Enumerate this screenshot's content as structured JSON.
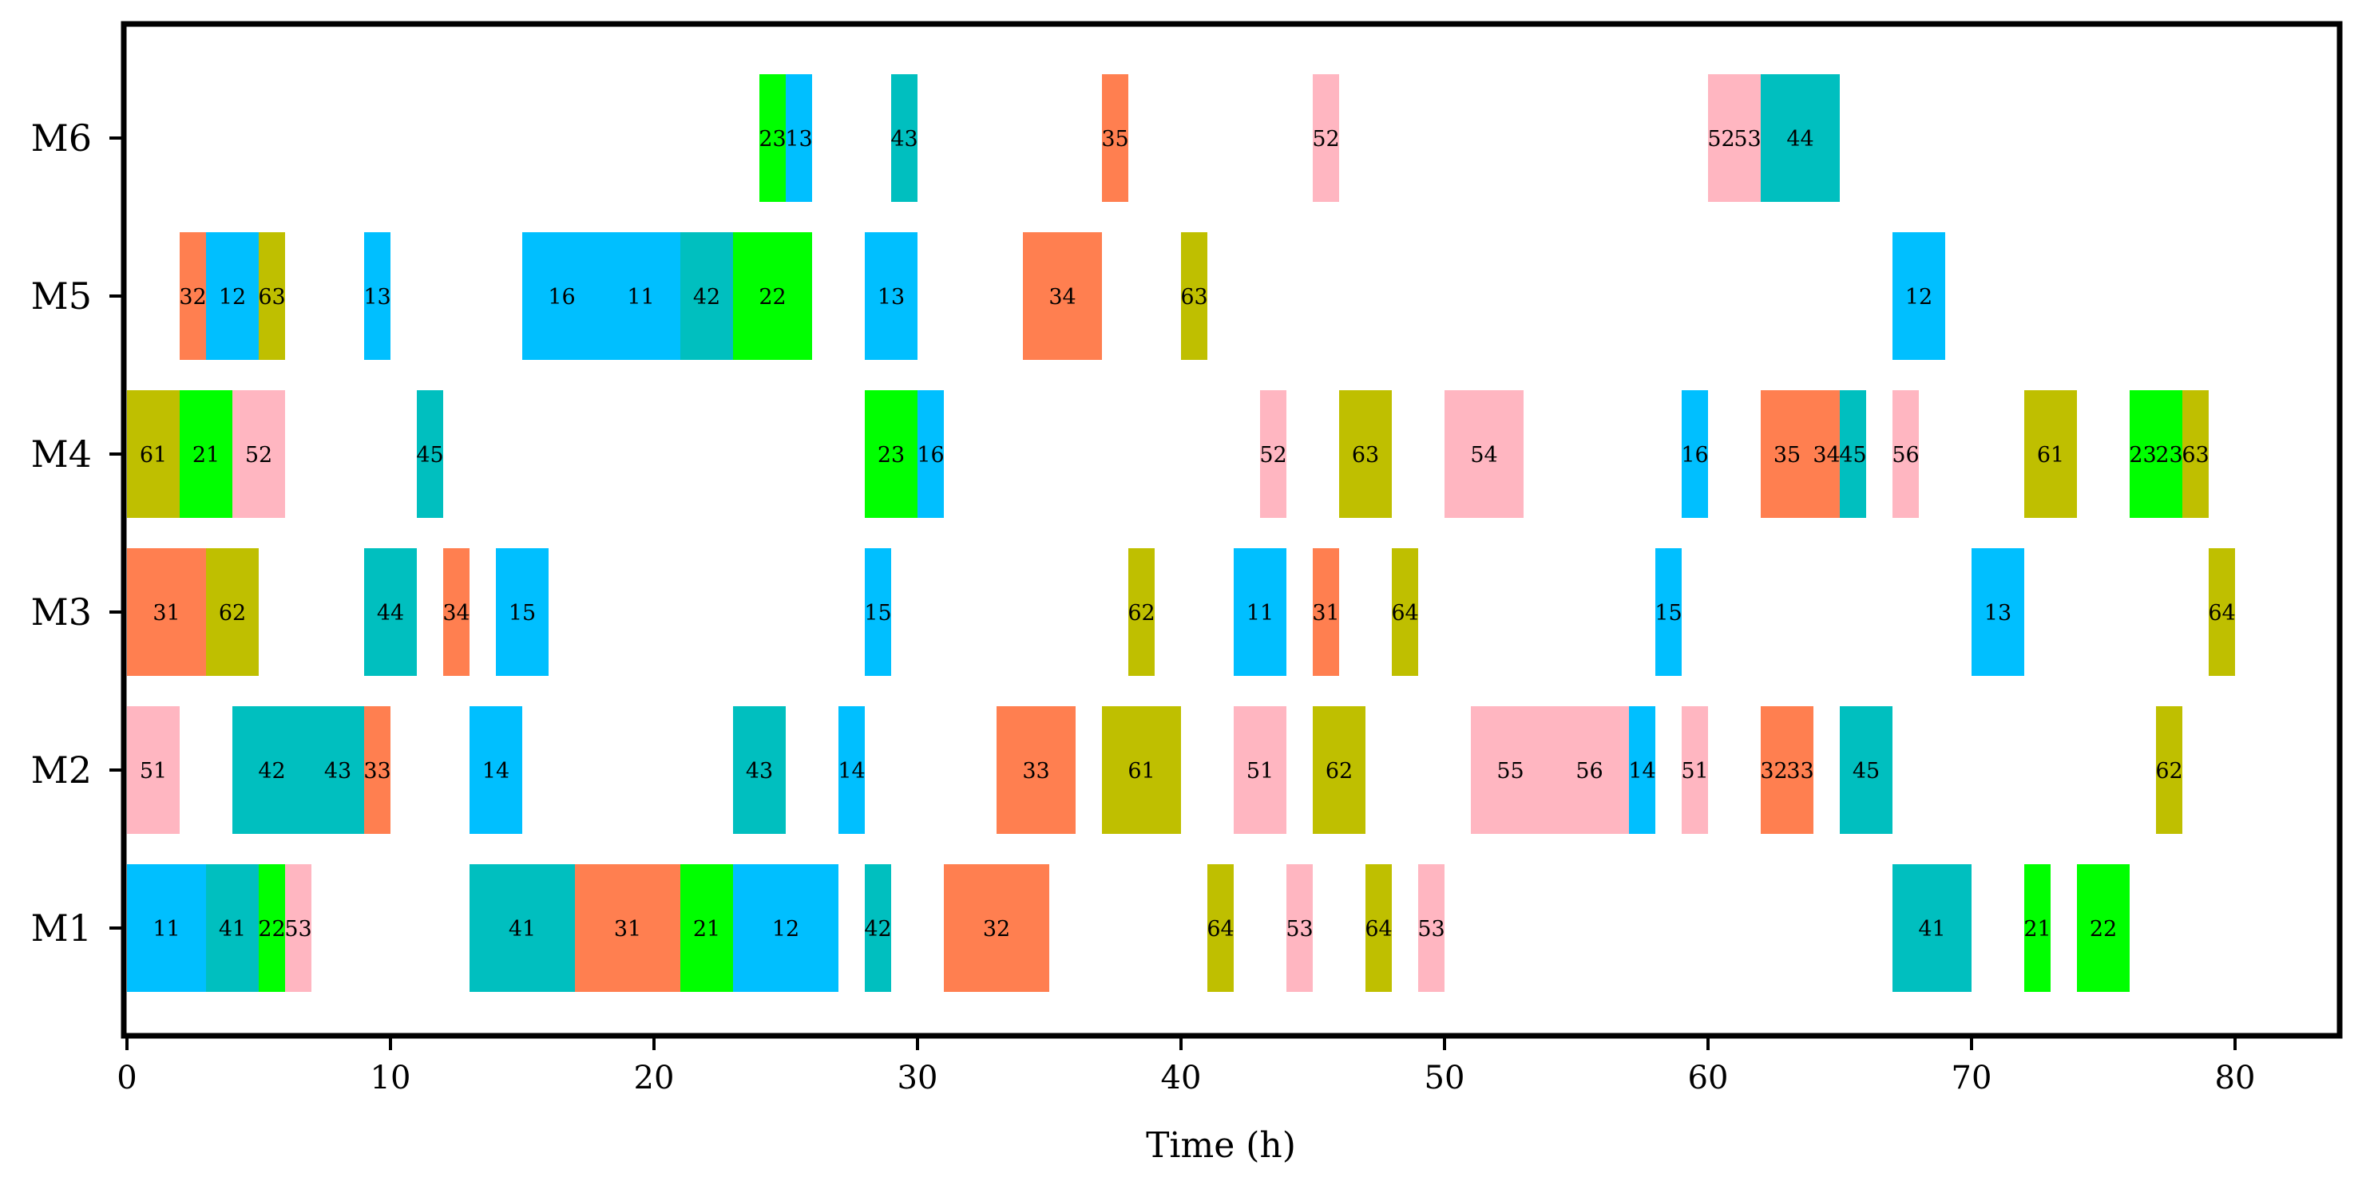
{
  "chart_data": {
    "type": "gantt",
    "xlabel": "Time (h)",
    "xlim": [
      0,
      84
    ],
    "xticks": [
      0,
      10,
      20,
      30,
      40,
      50,
      60,
      70,
      80
    ],
    "machines": [
      "M1",
      "M2",
      "M3",
      "M4",
      "M5",
      "M6"
    ],
    "job_colors": {
      "1": "#00BFFF",
      "2": "#00FF00",
      "3": "#FF7F50",
      "4": "#00BFBF",
      "5": "#FFB6C1",
      "6": "#BFBF00"
    },
    "operations": [
      {
        "machine": "M1",
        "label": "11",
        "job": "1",
        "start": 0,
        "end": 3
      },
      {
        "machine": "M1",
        "label": "41",
        "job": "4",
        "start": 3,
        "end": 5
      },
      {
        "machine": "M1",
        "label": "22",
        "job": "2",
        "start": 5,
        "end": 6
      },
      {
        "machine": "M1",
        "label": "53",
        "job": "5",
        "start": 6,
        "end": 7
      },
      {
        "machine": "M1",
        "label": "41",
        "job": "4",
        "start": 13,
        "end": 17
      },
      {
        "machine": "M1",
        "label": "31",
        "job": "3",
        "start": 17,
        "end": 21
      },
      {
        "machine": "M1",
        "label": "21",
        "job": "2",
        "start": 21,
        "end": 23
      },
      {
        "machine": "M1",
        "label": "12",
        "job": "1",
        "start": 23,
        "end": 27
      },
      {
        "machine": "M1",
        "label": "42",
        "job": "4",
        "start": 28,
        "end": 29
      },
      {
        "machine": "M1",
        "label": "32",
        "job": "3",
        "start": 31,
        "end": 35
      },
      {
        "machine": "M1",
        "label": "64",
        "job": "6",
        "start": 41,
        "end": 42
      },
      {
        "machine": "M1",
        "label": "53",
        "job": "5",
        "start": 44,
        "end": 45
      },
      {
        "machine": "M1",
        "label": "64",
        "job": "6",
        "start": 47,
        "end": 48
      },
      {
        "machine": "M1",
        "label": "53",
        "job": "5",
        "start": 49,
        "end": 50
      },
      {
        "machine": "M1",
        "label": "41",
        "job": "4",
        "start": 67,
        "end": 70
      },
      {
        "machine": "M1",
        "label": "21",
        "job": "2",
        "start": 72,
        "end": 73
      },
      {
        "machine": "M1",
        "label": "22",
        "job": "2",
        "start": 74,
        "end": 76
      },
      {
        "machine": "M2",
        "label": "51",
        "job": "5",
        "start": 0,
        "end": 2
      },
      {
        "machine": "M2",
        "label": "42",
        "job": "4",
        "start": 4,
        "end": 7
      },
      {
        "machine": "M2",
        "label": "43",
        "job": "4",
        "start": 7,
        "end": 9
      },
      {
        "machine": "M2",
        "label": "33",
        "job": "3",
        "start": 9,
        "end": 10
      },
      {
        "machine": "M2",
        "label": "14",
        "job": "1",
        "start": 13,
        "end": 15
      },
      {
        "machine": "M2",
        "label": "43",
        "job": "4",
        "start": 23,
        "end": 25
      },
      {
        "machine": "M2",
        "label": "14",
        "job": "1",
        "start": 27,
        "end": 28
      },
      {
        "machine": "M2",
        "label": "33",
        "job": "3",
        "start": 33,
        "end": 36
      },
      {
        "machine": "M2",
        "label": "61",
        "job": "6",
        "start": 37,
        "end": 40
      },
      {
        "machine": "M2",
        "label": "51",
        "job": "5",
        "start": 42,
        "end": 44
      },
      {
        "machine": "M2",
        "label": "62",
        "job": "6",
        "start": 45,
        "end": 47
      },
      {
        "machine": "M2",
        "label": "55",
        "job": "5",
        "start": 51,
        "end": 54
      },
      {
        "machine": "M2",
        "label": "56",
        "job": "5",
        "start": 54,
        "end": 57
      },
      {
        "machine": "M2",
        "label": "14",
        "job": "1",
        "start": 57,
        "end": 58
      },
      {
        "machine": "M2",
        "label": "51",
        "job": "5",
        "start": 59,
        "end": 60
      },
      {
        "machine": "M2",
        "label": "32",
        "job": "3",
        "start": 62,
        "end": 63
      },
      {
        "machine": "M2",
        "label": "33",
        "job": "3",
        "start": 63,
        "end": 64
      },
      {
        "machine": "M2",
        "label": "45",
        "job": "4",
        "start": 65,
        "end": 67
      },
      {
        "machine": "M2",
        "label": "62",
        "job": "6",
        "start": 77,
        "end": 78
      },
      {
        "machine": "M3",
        "label": "31",
        "job": "3",
        "start": 0,
        "end": 3
      },
      {
        "machine": "M3",
        "label": "62",
        "job": "6",
        "start": 3,
        "end": 5
      },
      {
        "machine": "M3",
        "label": "44",
        "job": "4",
        "start": 9,
        "end": 11
      },
      {
        "machine": "M3",
        "label": "34",
        "job": "3",
        "start": 12,
        "end": 13
      },
      {
        "machine": "M3",
        "label": "15",
        "job": "1",
        "start": 14,
        "end": 16
      },
      {
        "machine": "M3",
        "label": "15",
        "job": "1",
        "start": 28,
        "end": 29
      },
      {
        "machine": "M3",
        "label": "62",
        "job": "6",
        "start": 38,
        "end": 39
      },
      {
        "machine": "M3",
        "label": "11",
        "job": "1",
        "start": 42,
        "end": 44
      },
      {
        "machine": "M3",
        "label": "31",
        "job": "3",
        "start": 45,
        "end": 46
      },
      {
        "machine": "M3",
        "label": "64",
        "job": "6",
        "start": 48,
        "end": 49
      },
      {
        "machine": "M3",
        "label": "15",
        "job": "1",
        "start": 58,
        "end": 59
      },
      {
        "machine": "M3",
        "label": "13",
        "job": "1",
        "start": 70,
        "end": 72
      },
      {
        "machine": "M3",
        "label": "64",
        "job": "6",
        "start": 79,
        "end": 80
      },
      {
        "machine": "M4",
        "label": "61",
        "job": "6",
        "start": 0,
        "end": 2
      },
      {
        "machine": "M4",
        "label": "21",
        "job": "2",
        "start": 2,
        "end": 4
      },
      {
        "machine": "M4",
        "label": "52",
        "job": "5",
        "start": 4,
        "end": 6
      },
      {
        "machine": "M4",
        "label": "45",
        "job": "4",
        "start": 11,
        "end": 12
      },
      {
        "machine": "M4",
        "label": "23",
        "job": "2",
        "start": 28,
        "end": 30
      },
      {
        "machine": "M4",
        "label": "16",
        "job": "1",
        "start": 30,
        "end": 31
      },
      {
        "machine": "M4",
        "label": "52",
        "job": "5",
        "start": 43,
        "end": 44
      },
      {
        "machine": "M4",
        "label": "63",
        "job": "6",
        "start": 46,
        "end": 48
      },
      {
        "machine": "M4",
        "label": "54",
        "job": "5",
        "start": 50,
        "end": 53
      },
      {
        "machine": "M4",
        "label": "16",
        "job": "1",
        "start": 59,
        "end": 60
      },
      {
        "machine": "M4",
        "label": "35",
        "job": "3",
        "start": 62,
        "end": 64
      },
      {
        "machine": "M4",
        "label": "34",
        "job": "3",
        "start": 64,
        "end": 65
      },
      {
        "machine": "M4",
        "label": "45",
        "job": "4",
        "start": 65,
        "end": 66
      },
      {
        "machine": "M4",
        "label": "56",
        "job": "5",
        "start": 67,
        "end": 68
      },
      {
        "machine": "M4",
        "label": "61",
        "job": "6",
        "start": 72,
        "end": 74
      },
      {
        "machine": "M4",
        "label": "23",
        "job": "2",
        "start": 76,
        "end": 77
      },
      {
        "machine": "M4",
        "label": "23",
        "job": "2",
        "start": 77,
        "end": 78
      },
      {
        "machine": "M4",
        "label": "63",
        "job": "6",
        "start": 78,
        "end": 79
      },
      {
        "machine": "M5",
        "label": "32",
        "job": "3",
        "start": 2,
        "end": 3
      },
      {
        "machine": "M5",
        "label": "12",
        "job": "1",
        "start": 3,
        "end": 5
      },
      {
        "machine": "M5",
        "label": "63",
        "job": "6",
        "start": 5,
        "end": 6
      },
      {
        "machine": "M5",
        "label": "13",
        "job": "1",
        "start": 9,
        "end": 10
      },
      {
        "machine": "M5",
        "label": "16",
        "job": "1",
        "start": 15,
        "end": 18
      },
      {
        "machine": "M5",
        "label": "11",
        "job": "1",
        "start": 18,
        "end": 21
      },
      {
        "machine": "M5",
        "label": "42",
        "job": "4",
        "start": 21,
        "end": 23
      },
      {
        "machine": "M5",
        "label": "22",
        "job": "2",
        "start": 23,
        "end": 26
      },
      {
        "machine": "M5",
        "label": "13",
        "job": "1",
        "start": 28,
        "end": 30
      },
      {
        "machine": "M5",
        "label": "34",
        "job": "3",
        "start": 34,
        "end": 37
      },
      {
        "machine": "M5",
        "label": "63",
        "job": "6",
        "start": 40,
        "end": 41
      },
      {
        "machine": "M5",
        "label": "12",
        "job": "1",
        "start": 67,
        "end": 69
      },
      {
        "machine": "M6",
        "label": "23",
        "job": "2",
        "start": 24,
        "end": 25
      },
      {
        "machine": "M6",
        "label": "13",
        "job": "1",
        "start": 25,
        "end": 26
      },
      {
        "machine": "M6",
        "label": "43",
        "job": "4",
        "start": 29,
        "end": 30
      },
      {
        "machine": "M6",
        "label": "35",
        "job": "3",
        "start": 37,
        "end": 38
      },
      {
        "machine": "M6",
        "label": "52",
        "job": "5",
        "start": 45,
        "end": 46
      },
      {
        "machine": "M6",
        "label": "52",
        "job": "5",
        "start": 60,
        "end": 61
      },
      {
        "machine": "M6",
        "label": "53",
        "job": "5",
        "start": 61,
        "end": 62
      },
      {
        "machine": "M6",
        "label": "44",
        "job": "4",
        "start": 62,
        "end": 65
      }
    ]
  }
}
